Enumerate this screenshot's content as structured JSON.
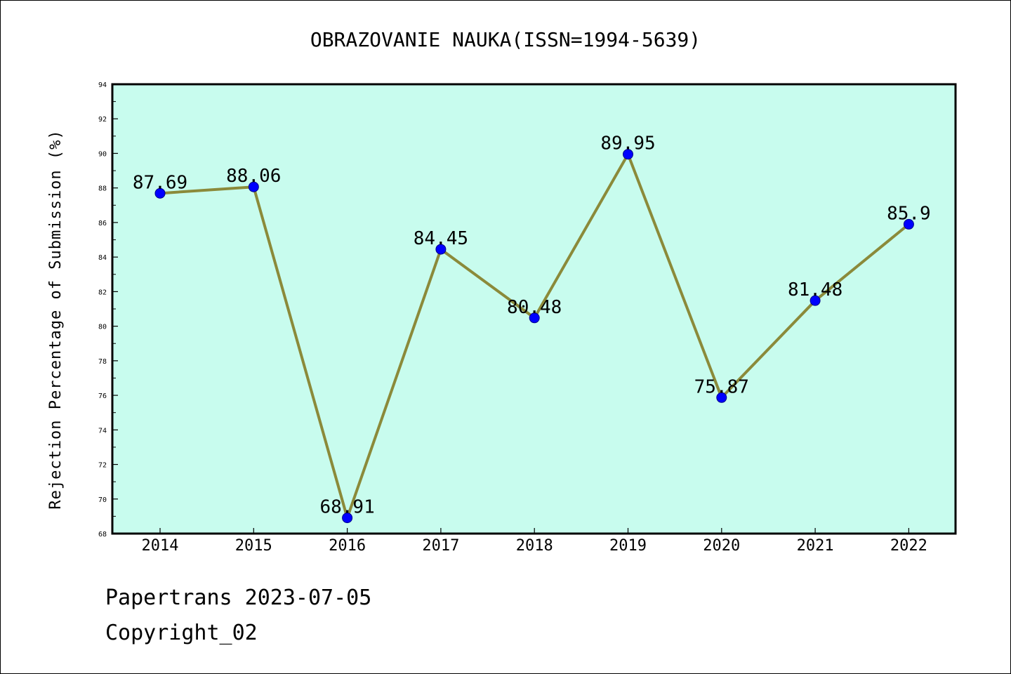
{
  "chart_data": {
    "type": "line",
    "title": "OBRAZOVANIE NAUKA(ISSN=1994-5639)",
    "xlabel": "",
    "ylabel": "Rejection Percentage of Submission (%)",
    "categories": [
      "2014",
      "2015",
      "2016",
      "2017",
      "2018",
      "2019",
      "2020",
      "2021",
      "2022"
    ],
    "series": [
      {
        "values": [
          87.69,
          88.06,
          68.91,
          84.45,
          80.48,
          89.95,
          75.87,
          81.48,
          85.9
        ],
        "labels": [
          "87.69",
          "88.06",
          "68.91",
          "84.45",
          "80.48",
          "89.95",
          "75.87",
          "81.48",
          "85.9"
        ]
      }
    ],
    "ylim": [
      68,
      94
    ],
    "yticks": [
      "68",
      "70",
      "72",
      "74",
      "76",
      "78",
      "80",
      "82",
      "84",
      "86",
      "88",
      "90",
      "92",
      "94"
    ],
    "grid": false,
    "legend": "none",
    "colors": {
      "plot_background": "#c8fcee",
      "line": "#8b8a3a",
      "marker": "#0000ff",
      "axes": "#000000"
    }
  },
  "footer": {
    "source": "Papertrans 2023-07-05",
    "copyright": "Copyright_02"
  }
}
